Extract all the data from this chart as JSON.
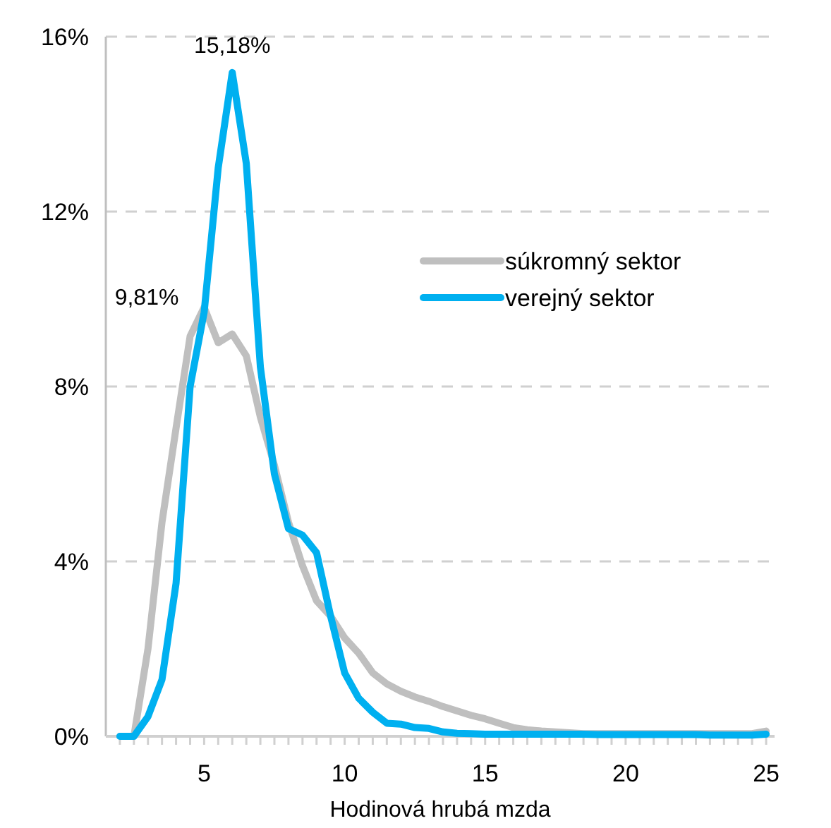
{
  "chart_data": {
    "type": "line",
    "xlabel": "Hodinová hrubá mzda",
    "x": [
      2,
      2.5,
      3,
      3.5,
      4,
      4.5,
      5,
      5.5,
      6,
      6.5,
      7,
      7.5,
      8,
      8.5,
      9,
      9.5,
      10,
      10.5,
      11,
      11.5,
      12,
      12.5,
      13,
      13.5,
      14,
      14.5,
      15,
      15.5,
      16,
      16.5,
      17,
      17.5,
      18,
      18.5,
      19,
      19.5,
      20,
      20.5,
      21,
      21.5,
      22,
      22.5,
      23,
      23.5,
      24,
      24.5,
      25
    ],
    "series": [
      {
        "name": "súkromný sektor",
        "color": "#bfbfbf",
        "values": [
          0,
          0,
          2.0,
          4.9,
          7.05,
          9.15,
          9.81,
          9.0,
          9.2,
          8.7,
          7.3,
          6.2,
          4.9,
          3.9,
          3.1,
          2.75,
          2.25,
          1.9,
          1.45,
          1.2,
          1.03,
          0.9,
          0.8,
          0.68,
          0.58,
          0.48,
          0.4,
          0.3,
          0.2,
          0.15,
          0.12,
          0.1,
          0.08,
          0.06,
          0.06,
          0.06,
          0.06,
          0.06,
          0.06,
          0.06,
          0.06,
          0.06,
          0.06,
          0.06,
          0.06,
          0.06,
          0.12
        ]
      },
      {
        "name": "verejný sektor",
        "color": "#00b0f0",
        "values": [
          0,
          0,
          0.45,
          1.3,
          3.5,
          8.0,
          9.7,
          13.0,
          15.18,
          13.1,
          8.45,
          6.0,
          4.75,
          4.6,
          4.2,
          2.75,
          1.45,
          0.87,
          0.55,
          0.3,
          0.28,
          0.2,
          0.18,
          0.1,
          0.07,
          0.06,
          0.05,
          0.05,
          0.05,
          0.05,
          0.05,
          0.05,
          0.05,
          0.05,
          0.04,
          0.04,
          0.04,
          0.04,
          0.04,
          0.04,
          0.04,
          0.04,
          0.03,
          0.03,
          0.03,
          0.03,
          0.05
        ]
      }
    ],
    "xlim": [
      1.5,
      25.3
    ],
    "xticks": [
      {
        "value": 2,
        "label": null
      },
      {
        "value": 2.5,
        "label": null
      },
      {
        "value": 3,
        "label": null
      },
      {
        "value": 3.5,
        "label": null
      },
      {
        "value": 4,
        "label": null
      },
      {
        "value": 4.5,
        "label": null
      },
      5,
      {
        "value": 5.5,
        "label": null
      },
      {
        "value": 6,
        "label": null
      },
      {
        "value": 6.5,
        "label": null
      },
      {
        "value": 7,
        "label": null
      },
      {
        "value": 7.5,
        "label": null
      },
      {
        "value": 8,
        "label": null
      },
      {
        "value": 8.5,
        "label": null
      },
      {
        "value": 9,
        "label": null
      },
      {
        "value": 9.5,
        "label": null
      },
      10,
      {
        "value": 10.5,
        "label": null
      },
      {
        "value": 11,
        "label": null
      },
      {
        "value": 11.5,
        "label": null
      },
      {
        "value": 12,
        "label": null
      },
      {
        "value": 12.5,
        "label": null
      },
      {
        "value": 13,
        "label": null
      },
      {
        "value": 13.5,
        "label": null
      },
      {
        "value": 14,
        "label": null
      },
      {
        "value": 14.5,
        "label": null
      },
      15,
      {
        "value": 15.5,
        "label": null
      },
      {
        "value": 16,
        "label": null
      },
      {
        "value": 16.5,
        "label": null
      },
      {
        "value": 17,
        "label": null
      },
      {
        "value": 17.5,
        "label": null
      },
      {
        "value": 18,
        "label": null
      },
      {
        "value": 18.5,
        "label": null
      },
      {
        "value": 19,
        "label": null
      },
      {
        "value": 19.5,
        "label": null
      },
      20,
      {
        "value": 20.5,
        "label": null
      },
      {
        "value": 21,
        "label": null
      },
      {
        "value": 21.5,
        "label": null
      },
      {
        "value": 22,
        "label": null
      },
      {
        "value": 22.5,
        "label": null
      },
      {
        "value": 23,
        "label": null
      },
      {
        "value": 23.5,
        "label": null
      },
      {
        "value": 24,
        "label": null
      },
      {
        "value": 24.5,
        "label": null
      },
      25
    ],
    "ylim": [
      0,
      16
    ],
    "yticks": [
      {
        "value": 0,
        "label": "0%"
      },
      {
        "value": 4,
        "label": "4%"
      },
      {
        "value": 8,
        "label": "8%"
      },
      {
        "value": 12,
        "label": "12%"
      },
      {
        "value": 16,
        "label": "16%"
      }
    ],
    "grid": "y",
    "legend": "right",
    "marker": "none",
    "line_style": "solid",
    "annotations": [
      {
        "text": "15,18%",
        "x": 6,
        "y": 15.18
      },
      {
        "text": "9,81%",
        "x": 5,
        "y": 9.81
      }
    ]
  }
}
